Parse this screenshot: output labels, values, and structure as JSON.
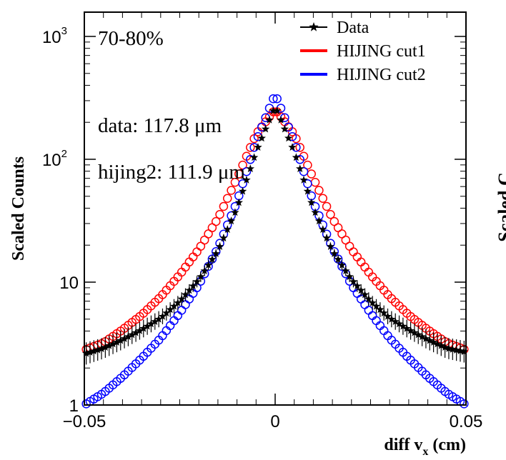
{
  "chart_data": {
    "type": "scatter",
    "title": "",
    "xlabel": "diff v",
    "xlabel_sub": "x",
    "xlabel_unit": " (cm)",
    "ylabel": "Scaled Counts",
    "xlim": [
      -0.05,
      0.05
    ],
    "ylim": [
      1,
      1500
    ],
    "yscale": "log",
    "x_ticks": [
      {
        "value": -0.05,
        "label": "−0.05"
      },
      {
        "value": 0,
        "label": "0"
      },
      {
        "value": 0.05,
        "label": "0.05"
      }
    ],
    "y_ticks": [
      {
        "value": 1,
        "label": "1"
      },
      {
        "value": 10,
        "label": "10"
      },
      {
        "value": 100,
        "label": "10",
        "sup": "2"
      },
      {
        "value": 1000,
        "label": "10",
        "sup": "3"
      }
    ],
    "annotations": {
      "centrality": "70-80%",
      "data_res": "data: 117.8 μm",
      "hijing_res": "hijing2: 111.9 μm"
    },
    "legend": {
      "placement": "top-right",
      "entries": [
        {
          "label": "Data",
          "color": "#000000",
          "marker": "star"
        },
        {
          "label": "HIJING cut1",
          "color": "#ff0000",
          "marker": "line"
        },
        {
          "label": "HIJING cut2",
          "color": "#0000ff",
          "marker": "line"
        }
      ]
    },
    "series": [
      {
        "label": "Data",
        "color": "#000000",
        "marker": "star",
        "x": [
          -0.05,
          -0.045,
          -0.04,
          -0.035,
          -0.03,
          -0.025,
          -0.02,
          -0.015,
          -0.01,
          -0.005,
          0,
          0.005,
          0.01,
          0.015,
          0.02,
          0.025,
          0.03,
          0.035,
          0.04,
          0.045,
          0.05
        ],
        "y": [
          2.6,
          2.9,
          3.4,
          4.1,
          5.1,
          7.0,
          10.5,
          18.0,
          40.0,
          115.0,
          270.0,
          115.0,
          40.0,
          18.0,
          10.5,
          7.0,
          5.1,
          4.1,
          3.4,
          2.9,
          2.7
        ]
      },
      {
        "label": "HIJING cut1",
        "color": "#ff0000",
        "marker": "open-circle",
        "x": [
          -0.05,
          -0.045,
          -0.04,
          -0.035,
          -0.03,
          -0.025,
          -0.02,
          -0.015,
          -0.01,
          -0.005,
          0,
          0.005,
          0.01,
          0.015,
          0.02,
          0.025,
          0.03,
          0.035,
          0.04,
          0.045,
          0.05
        ],
        "y": [
          2.8,
          3.2,
          4.1,
          5.4,
          7.6,
          11.5,
          18.5,
          33.0,
          70.0,
          160.0,
          255.0,
          160.0,
          70.0,
          33.0,
          18.5,
          11.5,
          7.6,
          5.4,
          4.1,
          3.2,
          2.8
        ]
      },
      {
        "label": "HIJING cut2",
        "color": "#0000ff",
        "marker": "open-circle",
        "x": [
          -0.05,
          -0.045,
          -0.04,
          -0.035,
          -0.03,
          -0.025,
          -0.02,
          -0.015,
          -0.01,
          -0.005,
          0,
          0.005,
          0.01,
          0.015,
          0.02,
          0.025,
          0.03,
          0.035,
          0.04,
          0.045,
          0.05
        ],
        "y": [
          1.0,
          1.25,
          1.7,
          2.4,
          3.5,
          5.6,
          9.5,
          19.0,
          45.0,
          140.0,
          340.0,
          140.0,
          45.0,
          19.0,
          9.5,
          5.6,
          3.5,
          2.4,
          1.7,
          1.25,
          1.0
        ]
      }
    ],
    "cutoff_text": "Scaled C"
  }
}
